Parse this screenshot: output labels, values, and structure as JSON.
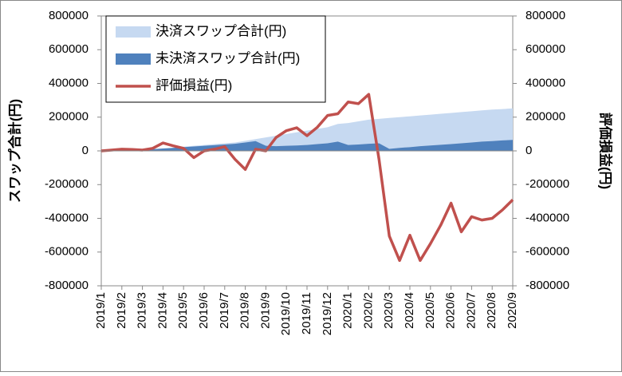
{
  "chart_data": {
    "type": "combo",
    "y_label": "スワップ合計(円)",
    "y2_label": "評価損益(円)",
    "categories": [
      "2019/1",
      null,
      "2019/2",
      null,
      "2019/3",
      null,
      "2019/4",
      null,
      "2019/5",
      null,
      "2019/6",
      null,
      "2019/7",
      null,
      "2019/8",
      null,
      "2019/9",
      null,
      "2019/10",
      null,
      "2019/11",
      null,
      "2019/12",
      null,
      "2020/1",
      null,
      "2020/2",
      null,
      "2020/3",
      null,
      "2020/4",
      null,
      "2020/5",
      null,
      "2020/6",
      null,
      "2020/7",
      null,
      "2020/8",
      null,
      "2020/9"
    ],
    "series": [
      {
        "name": "決済スワップ合計(円)",
        "type": "area",
        "color": "#c6d9f1",
        "values": [
          0,
          0,
          0,
          2000,
          5000,
          8000,
          12000,
          18000,
          25000,
          30000,
          35000,
          40000,
          45000,
          50000,
          60000,
          70000,
          80000,
          90000,
          100000,
          110000,
          120000,
          130000,
          140000,
          160000,
          165000,
          175000,
          185000,
          190000,
          195000,
          200000,
          205000,
          210000,
          215000,
          220000,
          225000,
          230000,
          235000,
          240000,
          245000,
          248000,
          252000
        ]
      },
      {
        "name": "未決済スワップ合計(円)",
        "type": "area",
        "color": "#4f81bd",
        "values": [
          0,
          0,
          2000,
          4000,
          6000,
          10000,
          14000,
          18000,
          22000,
          26000,
          30000,
          34000,
          38000,
          42000,
          50000,
          58000,
          30000,
          28000,
          30000,
          32000,
          35000,
          40000,
          45000,
          55000,
          35000,
          38000,
          42000,
          45000,
          12000,
          18000,
          22000,
          28000,
          32000,
          36000,
          40000,
          45000,
          50000,
          55000,
          58000,
          62000,
          65000
        ]
      },
      {
        "name": "評価損益(円)",
        "type": "line",
        "axis": "y2",
        "color": "#c0504d",
        "values": [
          0,
          5000,
          10000,
          8000,
          5000,
          15000,
          47000,
          30000,
          15000,
          -40000,
          0,
          10000,
          25000,
          -50000,
          -110000,
          10000,
          0,
          80000,
          120000,
          137000,
          90000,
          140000,
          210000,
          220000,
          290000,
          280000,
          335000,
          -50000,
          -505000,
          -650000,
          -500000,
          -650000,
          -550000,
          -440000,
          -310000,
          -480000,
          -390000,
          -410000,
          -400000,
          -350000,
          -290000
        ]
      }
    ],
    "ylim": [
      -800000,
      800000
    ],
    "yticks": [
      -800000,
      -600000,
      -400000,
      -200000,
      0,
      200000,
      400000,
      600000,
      800000
    ],
    "y2lim": [
      -800000,
      800000
    ],
    "y2ticks": [
      -800000,
      -600000,
      -400000,
      -200000,
      0,
      200000,
      400000,
      600000,
      800000
    ],
    "legend": "upper left",
    "grid": false
  }
}
